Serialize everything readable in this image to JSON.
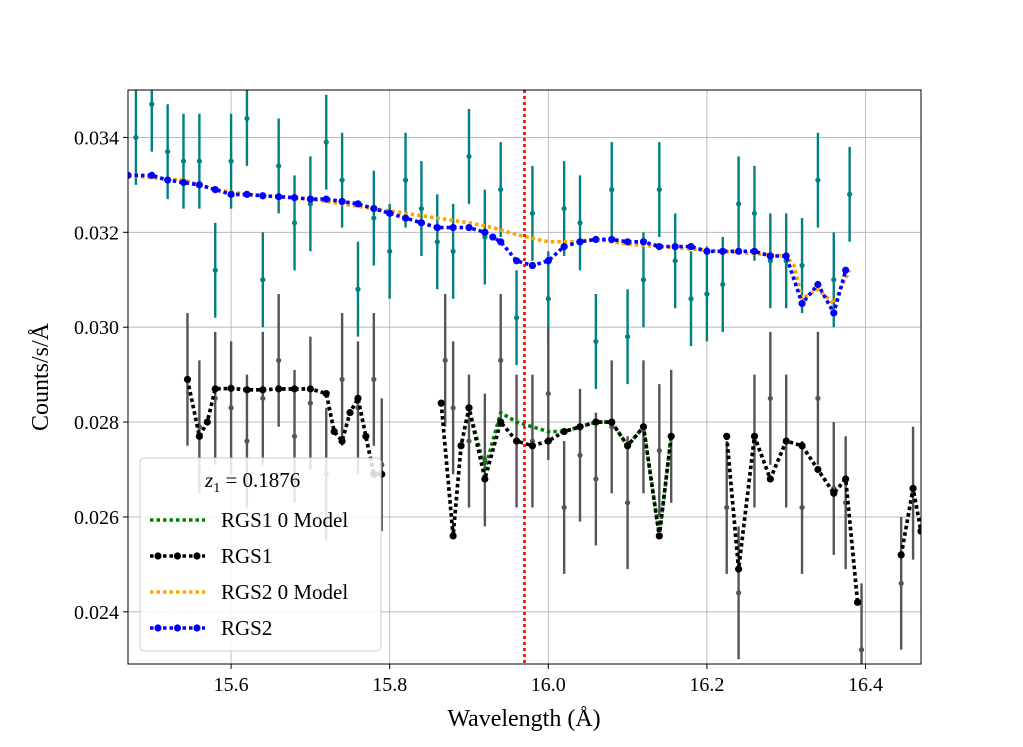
{
  "chart_data": {
    "type": "line",
    "xlabel": "Wavelength (Å)",
    "ylabel": "Counts/s/Å",
    "xlim": [
      15.47,
      16.47
    ],
    "ylim": [
      0.0229,
      0.035
    ],
    "x_ticks": [
      15.6,
      15.8,
      16.0,
      16.2,
      16.4
    ],
    "x_tick_labels": [
      "15.6",
      "15.8",
      "16.0",
      "16.2",
      "16.4"
    ],
    "y_ticks": [
      0.024,
      0.026,
      0.028,
      0.03,
      0.032,
      0.034
    ],
    "y_tick_labels": [
      "0.024",
      "0.026",
      "0.028",
      "0.030",
      "0.032",
      "0.034"
    ],
    "grid": true,
    "vline": {
      "x": 15.97,
      "color": "#ff0000",
      "style": "dotted"
    },
    "legend": {
      "location": "lower-left",
      "title": "z1 = 0.1876",
      "title_var": "z",
      "title_sub": "1",
      "title_eq": " = 0.1876",
      "entries": [
        {
          "label": "RGS1 0 Model",
          "color": "#008000",
          "marker": false
        },
        {
          "label": "RGS1",
          "color": "#000000",
          "marker": true
        },
        {
          "label": "RGS2 0 Model",
          "color": "#ffa500",
          "marker": false
        },
        {
          "label": "RGS2",
          "color": "#0000ff",
          "marker": true
        }
      ]
    },
    "series": [
      {
        "name": "RGS2 data",
        "kind": "errorbar",
        "color": "#008080",
        "x": [
          15.48,
          15.5,
          15.52,
          15.54,
          15.56,
          15.58,
          15.6,
          15.62,
          15.64,
          15.66,
          15.68,
          15.7,
          15.72,
          15.74,
          15.76,
          15.78,
          15.8,
          15.82,
          15.84,
          15.86,
          15.88,
          15.9,
          15.92,
          15.94,
          15.96,
          15.98,
          16.0,
          16.02,
          16.04,
          16.06,
          16.08,
          16.1,
          16.12,
          16.14,
          16.16,
          16.18,
          16.2,
          16.22,
          16.24,
          16.26,
          16.28,
          16.3,
          16.32,
          16.34,
          16.36,
          16.38
        ],
        "y": [
          0.034,
          0.0347,
          0.0337,
          0.0335,
          0.0335,
          0.0312,
          0.0335,
          0.0344,
          0.031,
          0.0334,
          0.0322,
          0.0326,
          0.0339,
          0.0331,
          0.0308,
          0.0323,
          0.0316,
          0.0331,
          0.0325,
          0.0318,
          0.0316,
          0.0336,
          0.0319,
          0.0329,
          0.0302,
          0.0324,
          0.0306,
          0.0325,
          0.0322,
          0.0297,
          0.0329,
          0.0298,
          0.031,
          0.0329,
          0.0314,
          0.0306,
          0.0307,
          0.0309,
          0.0326,
          0.0324,
          0.0314,
          0.0314,
          0.0313,
          0.0331,
          0.031,
          0.0328
        ],
        "yerr": [
          0.001,
          0.001,
          0.001,
          0.001,
          0.001,
          0.001,
          0.001,
          0.001,
          0.001,
          0.001,
          0.001,
          0.001,
          0.001,
          0.001,
          0.001,
          0.001,
          0.001,
          0.001,
          0.001,
          0.001,
          0.001,
          0.001,
          0.001,
          0.001,
          0.001,
          0.001,
          0.001,
          0.001,
          0.001,
          0.001,
          0.001,
          0.001,
          0.001,
          0.001,
          0.001,
          0.001,
          0.001,
          0.001,
          0.001,
          0.001,
          0.001,
          0.001,
          0.001,
          0.001,
          0.001,
          0.001
        ]
      },
      {
        "name": "RGS1 data",
        "kind": "errorbar",
        "color": "#555555",
        "x": [
          15.545,
          15.56,
          15.58,
          15.6,
          15.62,
          15.64,
          15.66,
          15.68,
          15.7,
          15.72,
          15.74,
          15.76,
          15.78,
          15.79,
          15.87,
          15.88,
          15.9,
          15.92,
          15.94,
          15.96,
          15.98,
          16.0,
          16.02,
          16.04,
          16.06,
          16.08,
          16.1,
          16.12,
          16.14,
          16.155,
          16.225,
          16.24,
          16.26,
          16.28,
          16.3,
          16.32,
          16.34,
          16.36,
          16.375,
          16.395,
          16.445,
          16.46
        ],
        "y": [
          0.0289,
          0.0279,
          0.0285,
          0.0283,
          0.0276,
          0.0285,
          0.0293,
          0.0277,
          0.0284,
          0.0269,
          0.0289,
          0.0283,
          0.0289,
          0.0271,
          0.0293,
          0.0283,
          0.0276,
          0.0272,
          0.0293,
          0.0276,
          0.0276,
          0.0286,
          0.0262,
          0.0273,
          0.0268,
          0.0279,
          0.0263,
          0.0279,
          0.0274,
          0.0277,
          0.0262,
          0.0244,
          0.0276,
          0.0285,
          0.0276,
          0.0262,
          0.0285,
          0.0266,
          0.0263,
          0.0232,
          0.0246,
          0.0265
        ],
        "yerr": [
          0.0014,
          0.0014,
          0.0014,
          0.0014,
          0.0014,
          0.0014,
          0.0014,
          0.0014,
          0.0014,
          0.0014,
          0.0014,
          0.0014,
          0.0014,
          0.0014,
          0.0014,
          0.0014,
          0.0014,
          0.0014,
          0.0014,
          0.0014,
          0.0014,
          0.0014,
          0.0014,
          0.0014,
          0.0014,
          0.0014,
          0.0014,
          0.0014,
          0.0014,
          0.0014,
          0.0014,
          0.0014,
          0.0014,
          0.0014,
          0.0014,
          0.0014,
          0.0014,
          0.0014,
          0.0014,
          0.0014,
          0.0014,
          0.0014
        ]
      },
      {
        "name": "RGS1 0 Model",
        "kind": "line",
        "color": "#008000",
        "segments": [
          {
            "x": [
              15.545,
              15.56,
              15.57,
              15.58,
              15.6,
              15.62,
              15.64,
              15.66,
              15.68,
              15.7,
              15.72,
              15.73,
              15.74,
              15.75,
              15.76,
              15.77,
              15.78,
              15.79
            ],
            "y": [
              0.0289,
              0.0277,
              0.028,
              0.0287,
              0.02871,
              0.02868,
              0.02868,
              0.0287,
              0.0287,
              0.0287,
              0.0286,
              0.0278,
              0.0276,
              0.0282,
              0.0285,
              0.0277,
              0.0269,
              0.0269
            ]
          },
          {
            "x": [
              15.865,
              15.88,
              15.89,
              15.9,
              15.92,
              15.94,
              15.96,
              15.98,
              16.0,
              16.02,
              16.04,
              16.06,
              16.08,
              16.1,
              16.12,
              16.14,
              16.155
            ],
            "y": [
              0.0284,
              0.0256,
              0.0275,
              0.0283,
              0.027,
              0.0282,
              0.028,
              0.0279,
              0.0278,
              0.0278,
              0.0279,
              0.028,
              0.028,
              0.0275,
              0.0279,
              0.0256,
              0.0277
            ]
          },
          {
            "x": [
              16.225,
              16.24,
              16.26,
              16.28,
              16.3,
              16.32,
              16.34,
              16.36,
              16.375,
              16.39
            ],
            "y": [
              0.0277,
              0.0249,
              0.0277,
              0.0268,
              0.0276,
              0.0275,
              0.027,
              0.0265,
              0.0268,
              0.0242
            ]
          },
          {
            "x": [
              16.445,
              16.46,
              16.47
            ],
            "y": [
              0.0252,
              0.0266,
              0.0257
            ]
          }
        ]
      },
      {
        "name": "RGS1",
        "kind": "line-marker",
        "color": "#000000",
        "segments": [
          {
            "x": [
              15.545,
              15.56,
              15.57,
              15.58,
              15.6,
              15.62,
              15.64,
              15.66,
              15.68,
              15.7,
              15.72,
              15.73,
              15.74,
              15.75,
              15.76,
              15.77,
              15.78,
              15.79
            ],
            "y": [
              0.0289,
              0.0277,
              0.028,
              0.0287,
              0.02871,
              0.02868,
              0.02868,
              0.0287,
              0.0287,
              0.0287,
              0.0286,
              0.0278,
              0.0276,
              0.0282,
              0.0285,
              0.0277,
              0.0269,
              0.0269
            ]
          },
          {
            "x": [
              15.865,
              15.88,
              15.89,
              15.9,
              15.92,
              15.94,
              15.96,
              15.98,
              16.0,
              16.02,
              16.04,
              16.06,
              16.08,
              16.1,
              16.12,
              16.14,
              16.155
            ],
            "y": [
              0.0284,
              0.0256,
              0.0275,
              0.0283,
              0.0268,
              0.028,
              0.0276,
              0.0275,
              0.0276,
              0.0278,
              0.0279,
              0.028,
              0.028,
              0.0275,
              0.0279,
              0.0256,
              0.0277
            ]
          },
          {
            "x": [
              16.225,
              16.24,
              16.26,
              16.28,
              16.3,
              16.32,
              16.34,
              16.36,
              16.375,
              16.39
            ],
            "y": [
              0.0277,
              0.0249,
              0.0277,
              0.0268,
              0.0276,
              0.0275,
              0.027,
              0.0265,
              0.0268,
              0.0242
            ]
          },
          {
            "x": [
              16.445,
              16.46,
              16.47
            ],
            "y": [
              0.0252,
              0.0266,
              0.0257
            ]
          }
        ]
      },
      {
        "name": "RGS2 0 Model",
        "kind": "line",
        "color": "#ffa500",
        "segments": [
          {
            "x": [
              15.47,
              15.5,
              15.54,
              15.58,
              15.62,
              15.66,
              15.7,
              15.74,
              15.78,
              15.82,
              15.86,
              15.9,
              15.93,
              15.96,
              16.0,
              16.03,
              16.06,
              16.1,
              16.14,
              16.18,
              16.22,
              16.26,
              16.3,
              16.31,
              16.32,
              16.34,
              16.36,
              16.38
            ],
            "y": [
              0.0332,
              0.03315,
              0.0331,
              0.0329,
              0.0328,
              0.03275,
              0.0327,
              0.0326,
              0.0325,
              0.0324,
              0.0323,
              0.0322,
              0.0321,
              0.03195,
              0.0318,
              0.0318,
              0.03185,
              0.03175,
              0.0317,
              0.03165,
              0.0316,
              0.03155,
              0.0315,
              0.0313,
              0.0306,
              0.0308,
              0.0305,
              0.0312
            ]
          }
        ]
      },
      {
        "name": "RGS2",
        "kind": "line-marker",
        "color": "#0000ff",
        "segments": [
          {
            "x": [
              15.47,
              15.5,
              15.52,
              15.54,
              15.56,
              15.58,
              15.6,
              15.62,
              15.64,
              15.66,
              15.68,
              15.7,
              15.72,
              15.74,
              15.76,
              15.78,
              15.8,
              15.82,
              15.84,
              15.86,
              15.88,
              15.9,
              15.92,
              15.93,
              15.94,
              15.96,
              15.98,
              16.0,
              16.02,
              16.04,
              16.06,
              16.08,
              16.1,
              16.12,
              16.14,
              16.16,
              16.18,
              16.2,
              16.22,
              16.24,
              16.26,
              16.28,
              16.3,
              16.32,
              16.34,
              16.36,
              16.375
            ],
            "y": [
              0.0332,
              0.0332,
              0.0331,
              0.03305,
              0.033,
              0.0329,
              0.0328,
              0.0328,
              0.03277,
              0.03275,
              0.03273,
              0.0327,
              0.0327,
              0.03265,
              0.0326,
              0.0325,
              0.0324,
              0.0323,
              0.0322,
              0.0321,
              0.0321,
              0.0321,
              0.032,
              0.0319,
              0.0318,
              0.0314,
              0.0313,
              0.0314,
              0.0317,
              0.0318,
              0.03185,
              0.03185,
              0.0318,
              0.0318,
              0.0317,
              0.0317,
              0.0317,
              0.0316,
              0.0316,
              0.0316,
              0.0316,
              0.0315,
              0.0315,
              0.0305,
              0.0309,
              0.0303,
              0.0312
            ]
          }
        ]
      }
    ]
  }
}
